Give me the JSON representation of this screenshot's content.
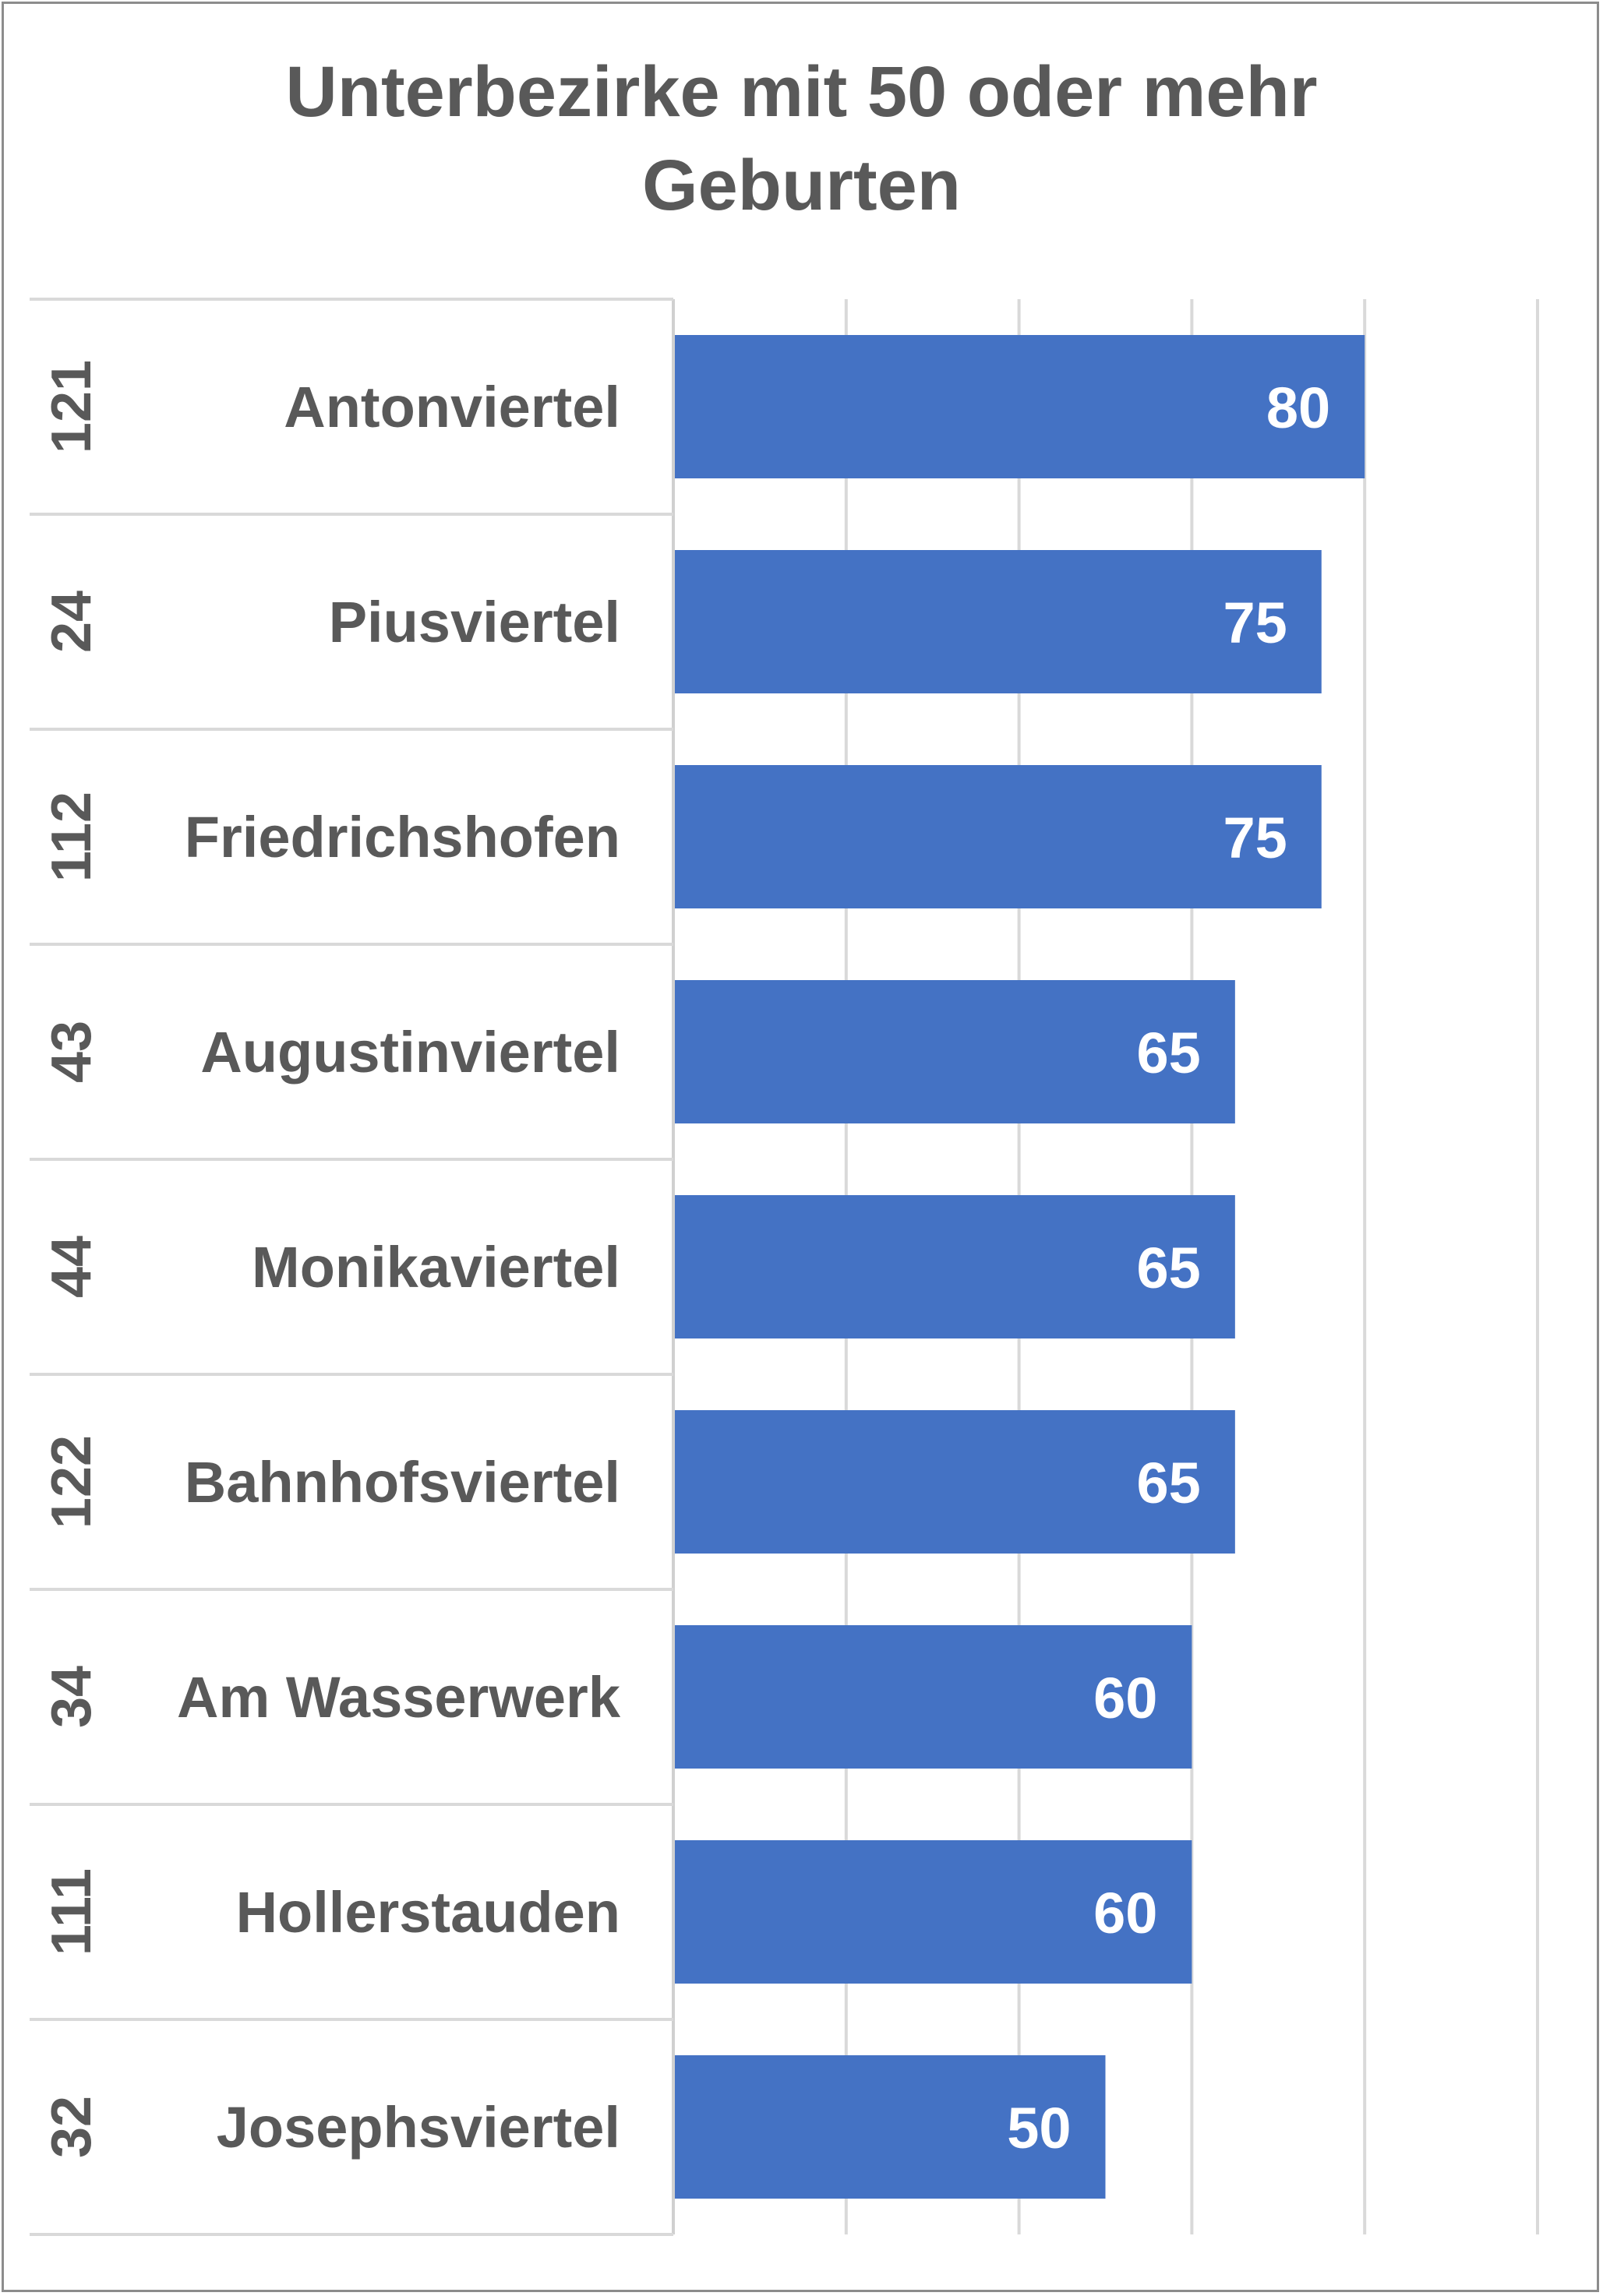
{
  "chart_data": {
    "type": "bar",
    "orientation": "horizontal",
    "title_lines": [
      "Unterbezirke mit 50 oder mehr",
      "Geburten"
    ],
    "categories": [
      {
        "code": "121",
        "name": "Antonviertel"
      },
      {
        "code": "24",
        "name": "Piusviertel"
      },
      {
        "code": "112",
        "name": "Friedrichshofen"
      },
      {
        "code": "43",
        "name": "Augustinviertel"
      },
      {
        "code": "44",
        "name": "Monikaviertel"
      },
      {
        "code": "122",
        "name": "Bahnhofsviertel"
      },
      {
        "code": "34",
        "name": "Am Wasserwerk"
      },
      {
        "code": "111",
        "name": "Hollerstauden"
      },
      {
        "code": "32",
        "name": "Josephsviertel"
      }
    ],
    "values": [
      80,
      75,
      75,
      65,
      65,
      65,
      60,
      60,
      50
    ],
    "xlim": [
      0,
      100
    ],
    "gridlines": [
      0,
      20,
      40,
      60,
      80,
      100
    ],
    "xlabel": "",
    "ylabel": "",
    "grid": true,
    "legend": "none",
    "bar_color": "#4472c4",
    "grid_color": "#d9d9d9",
    "text_color": "#595959"
  }
}
